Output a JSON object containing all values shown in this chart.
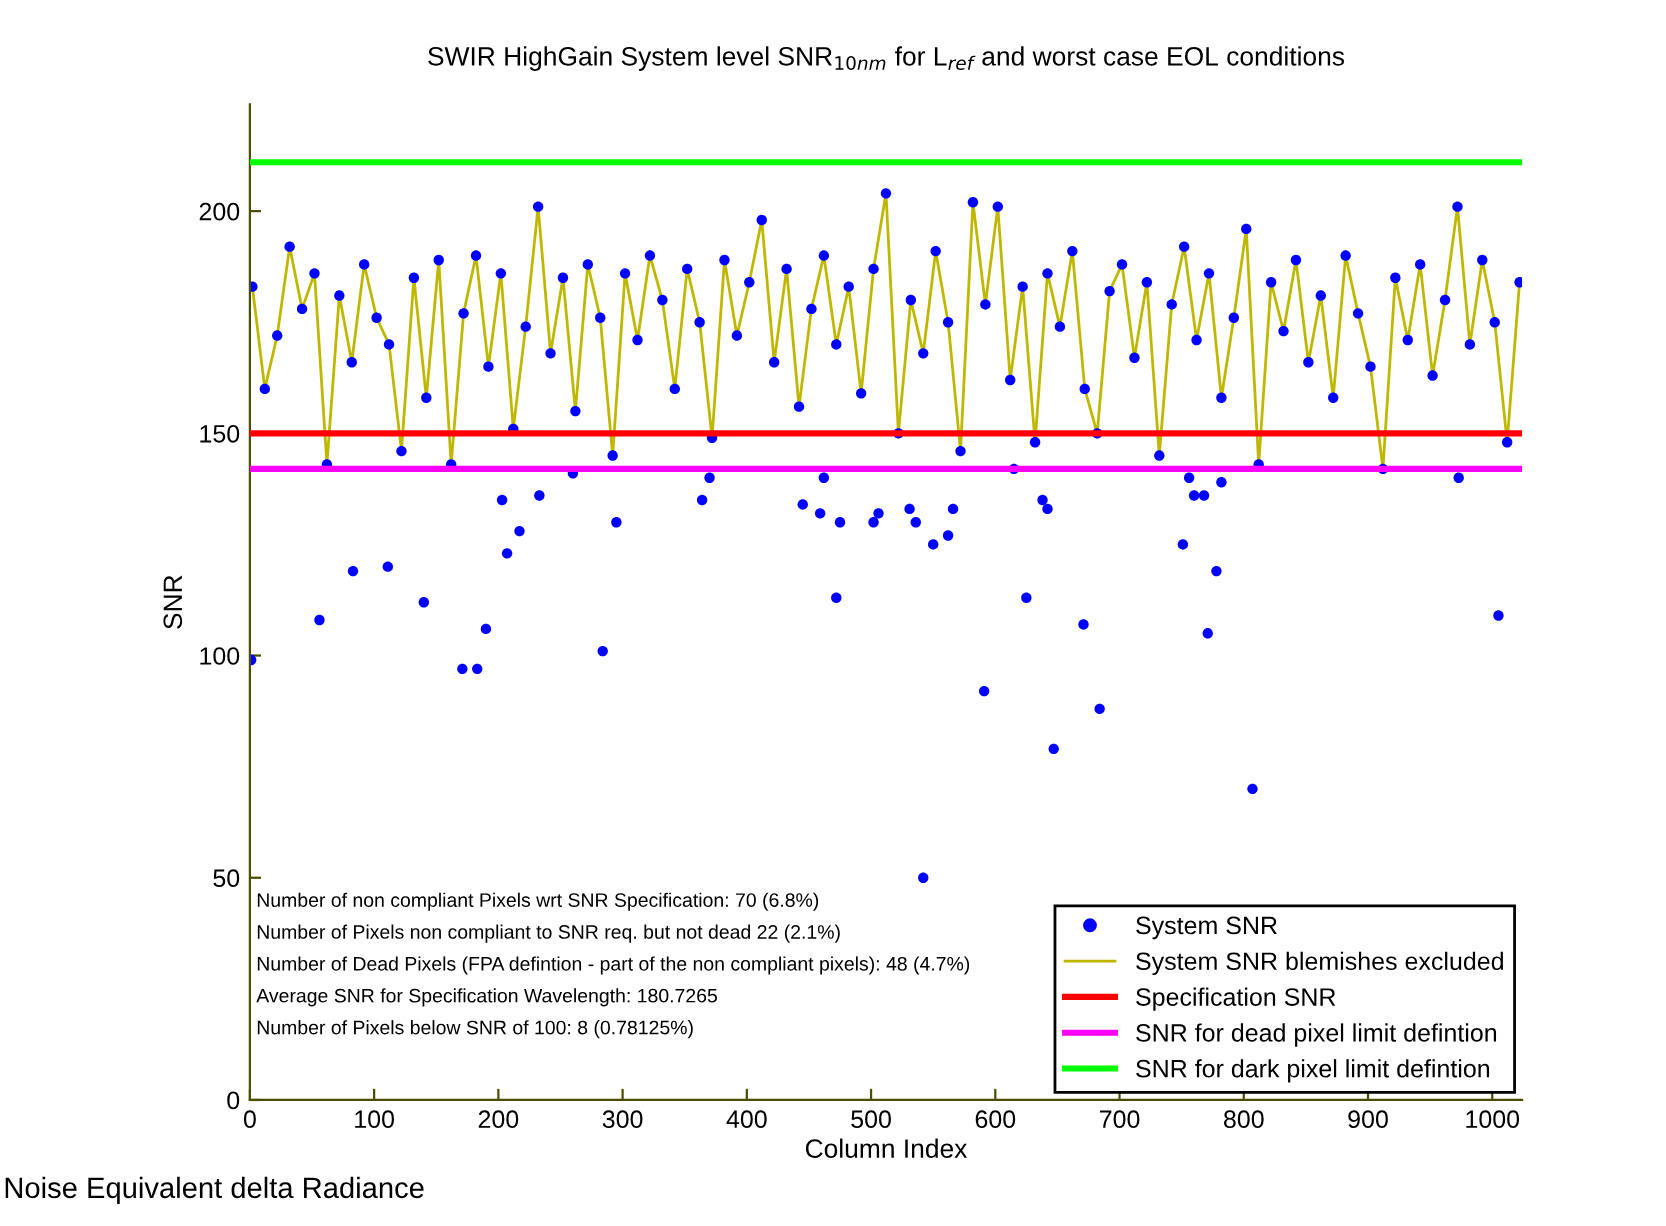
{
  "chart_data": {
    "type": "scatter",
    "title": "SWIR HighGain System level SNR$_{10nm}$ for L$_{ref}$ and worst case EOL conditions",
    "xlabel": "Column Index",
    "ylabel": "SNR",
    "xlim": [
      0,
      1024
    ],
    "xticks": [
      0,
      100,
      200,
      300,
      400,
      500,
      600,
      700,
      800,
      900,
      1000
    ],
    "ylim": [
      0,
      224
    ],
    "yticks": [
      0,
      50,
      100,
      150,
      200
    ],
    "grid": false,
    "legend": "bottom right",
    "marker": "circle",
    "series": [
      {
        "name": "System SNR",
        "color": "#0000ff",
        "x": [
          2,
          12,
          22,
          32,
          42,
          52,
          62,
          72,
          82,
          92,
          102,
          112,
          122,
          132,
          142,
          152,
          162,
          172,
          182,
          192,
          202,
          212,
          222,
          232,
          242,
          252,
          262,
          272,
          282,
          292,
          302,
          312,
          322,
          332,
          342,
          352,
          362,
          372,
          382,
          392,
          402,
          412,
          422,
          432,
          442,
          452,
          462,
          472,
          482,
          492,
          502,
          512,
          522,
          532,
          542,
          552,
          562,
          572,
          582,
          592,
          602,
          612,
          622,
          632,
          642,
          652,
          662,
          672,
          682,
          692,
          702,
          712,
          722,
          732,
          742,
          752,
          762,
          772,
          782,
          792,
          802,
          812,
          822,
          832,
          842,
          852,
          862,
          872,
          882,
          892,
          902,
          912,
          922,
          932,
          942,
          952,
          962,
          972,
          982,
          992,
          1002,
          1012,
          1022,
          1,
          56,
          83,
          111,
          140,
          171,
          183,
          190,
          203,
          207,
          217,
          233,
          260,
          284,
          295,
          364,
          370,
          445,
          459,
          462,
          472,
          475,
          502,
          506,
          531,
          536,
          542,
          550,
          562,
          566,
          591,
          615,
          625,
          638,
          642,
          647,
          671,
          684,
          751,
          756,
          760,
          768,
          771,
          778,
          782,
          807,
          973,
          1005
        ],
        "values": [
          183,
          160,
          172,
          192,
          178,
          186,
          143,
          181,
          166,
          188,
          176,
          170,
          146,
          185,
          158,
          189,
          143,
          177,
          190,
          165,
          186,
          151,
          174,
          201,
          168,
          185,
          155,
          188,
          176,
          145,
          186,
          171,
          190,
          180,
          160,
          187,
          175,
          149,
          189,
          172,
          184,
          198,
          166,
          187,
          156,
          178,
          190,
          170,
          183,
          159,
          187,
          204,
          150,
          180,
          168,
          191,
          175,
          146,
          202,
          179,
          201,
          162,
          183,
          148,
          186,
          174,
          191,
          160,
          150,
          182,
          188,
          167,
          184,
          145,
          179,
          192,
          171,
          186,
          158,
          176,
          196,
          143,
          184,
          173,
          189,
          166,
          181,
          158,
          190,
          177,
          165,
          142,
          185,
          171,
          188,
          163,
          180,
          201,
          170,
          189,
          175,
          148,
          184,
          99,
          108,
          119,
          120,
          112,
          97,
          97,
          106,
          135,
          123,
          128,
          136,
          141,
          101,
          130,
          135,
          140,
          134,
          132,
          140,
          113,
          130,
          130,
          132,
          133,
          130,
          50,
          125,
          127,
          133,
          92,
          142,
          113,
          135,
          133,
          79,
          107,
          88,
          125,
          140,
          136,
          136,
          105,
          119,
          139,
          70,
          140,
          109
        ]
      },
      {
        "name": "System SNR blemishes excluded",
        "type": "line",
        "color": "#c0b800",
        "marker": "none",
        "line_style": "solid",
        "x": [
          2,
          12,
          22,
          32,
          42,
          52,
          62,
          72,
          82,
          92,
          102,
          112,
          122,
          132,
          142,
          152,
          162,
          172,
          182,
          192,
          202,
          212,
          222,
          232,
          242,
          252,
          262,
          272,
          282,
          292,
          302,
          312,
          322,
          332,
          342,
          352,
          362,
          372,
          382,
          392,
          402,
          412,
          422,
          432,
          442,
          452,
          462,
          472,
          482,
          492,
          502,
          512,
          522,
          532,
          542,
          552,
          562,
          572,
          582,
          592,
          602,
          612,
          622,
          632,
          642,
          652,
          662,
          672,
          682,
          692,
          702,
          712,
          722,
          732,
          742,
          752,
          762,
          772,
          782,
          792,
          802,
          812,
          822,
          832,
          842,
          852,
          862,
          872,
          882,
          892,
          902,
          912,
          922,
          932,
          942,
          952,
          962,
          972,
          982,
          992,
          1002,
          1012,
          1022
        ],
        "values": [
          183,
          160,
          172,
          192,
          178,
          186,
          143,
          181,
          166,
          188,
          176,
          170,
          146,
          185,
          158,
          189,
          143,
          177,
          190,
          165,
          186,
          151,
          174,
          201,
          168,
          185,
          155,
          188,
          176,
          145,
          186,
          171,
          190,
          180,
          160,
          187,
          175,
          149,
          189,
          172,
          184,
          198,
          166,
          187,
          156,
          178,
          190,
          170,
          183,
          159,
          187,
          204,
          150,
          180,
          168,
          191,
          175,
          146,
          202,
          179,
          201,
          162,
          183,
          148,
          186,
          174,
          191,
          160,
          150,
          182,
          188,
          167,
          184,
          145,
          179,
          192,
          171,
          186,
          158,
          176,
          196,
          143,
          184,
          173,
          189,
          166,
          181,
          158,
          190,
          177,
          165,
          142,
          185,
          171,
          188,
          163,
          180,
          201,
          170,
          189,
          175,
          148,
          184
        ]
      }
    ],
    "ref_lines": [
      {
        "axis": "y",
        "value": 150,
        "label": "Specification SNR",
        "color": "#ff0000",
        "line_style": "solid"
      },
      {
        "axis": "y",
        "value": 142,
        "label": "SNR for dead pixel limit defintion",
        "color": "#ff00ff",
        "line_style": "solid"
      },
      {
        "axis": "y",
        "value": 211,
        "label": "SNR for dark pixel limit defintion",
        "color": "#00ff00",
        "line_style": "solid"
      }
    ],
    "annotations": [
      "Number of non compliant Pixels wrt SNR Specification: 70 (6.8%)",
      "Number of Pixels non compliant to SNR req. but not dead 22 (2.1%)",
      "Number of Dead Pixels (FPA defintion - part of the non compliant pixels): 48 (4.7%)",
      "Average SNR for Specification Wavelength: 180.7265",
      "Number of Pixels below SNR of 100: 8 (0.78125%)",
      "Noise Equivalent delta Radiance"
    ]
  }
}
